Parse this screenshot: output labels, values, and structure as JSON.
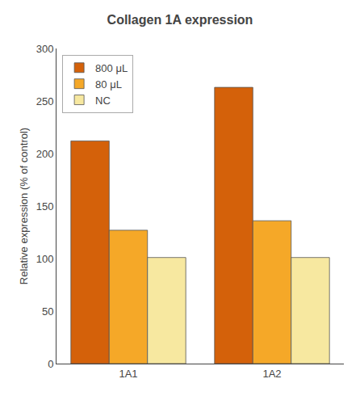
{
  "chart_data": {
    "type": "bar",
    "title": "Collagen 1A expression",
    "ylabel": "Relative expression (% of control)",
    "categories": [
      "1A1",
      "1A2"
    ],
    "series": [
      {
        "name": "800 μL",
        "values": [
          212,
          263
        ],
        "color": "#D4610A"
      },
      {
        "name": "80 μL",
        "values": [
          127,
          136
        ],
        "color": "#F5A828"
      },
      {
        "name": "NC",
        "values": [
          101,
          101
        ],
        "color": "#F7E8A0"
      }
    ],
    "ylim": [
      0,
      300
    ],
    "yticks": [
      0,
      50,
      100,
      150,
      200,
      250,
      300
    ],
    "grid": false,
    "legend": "upper left"
  }
}
